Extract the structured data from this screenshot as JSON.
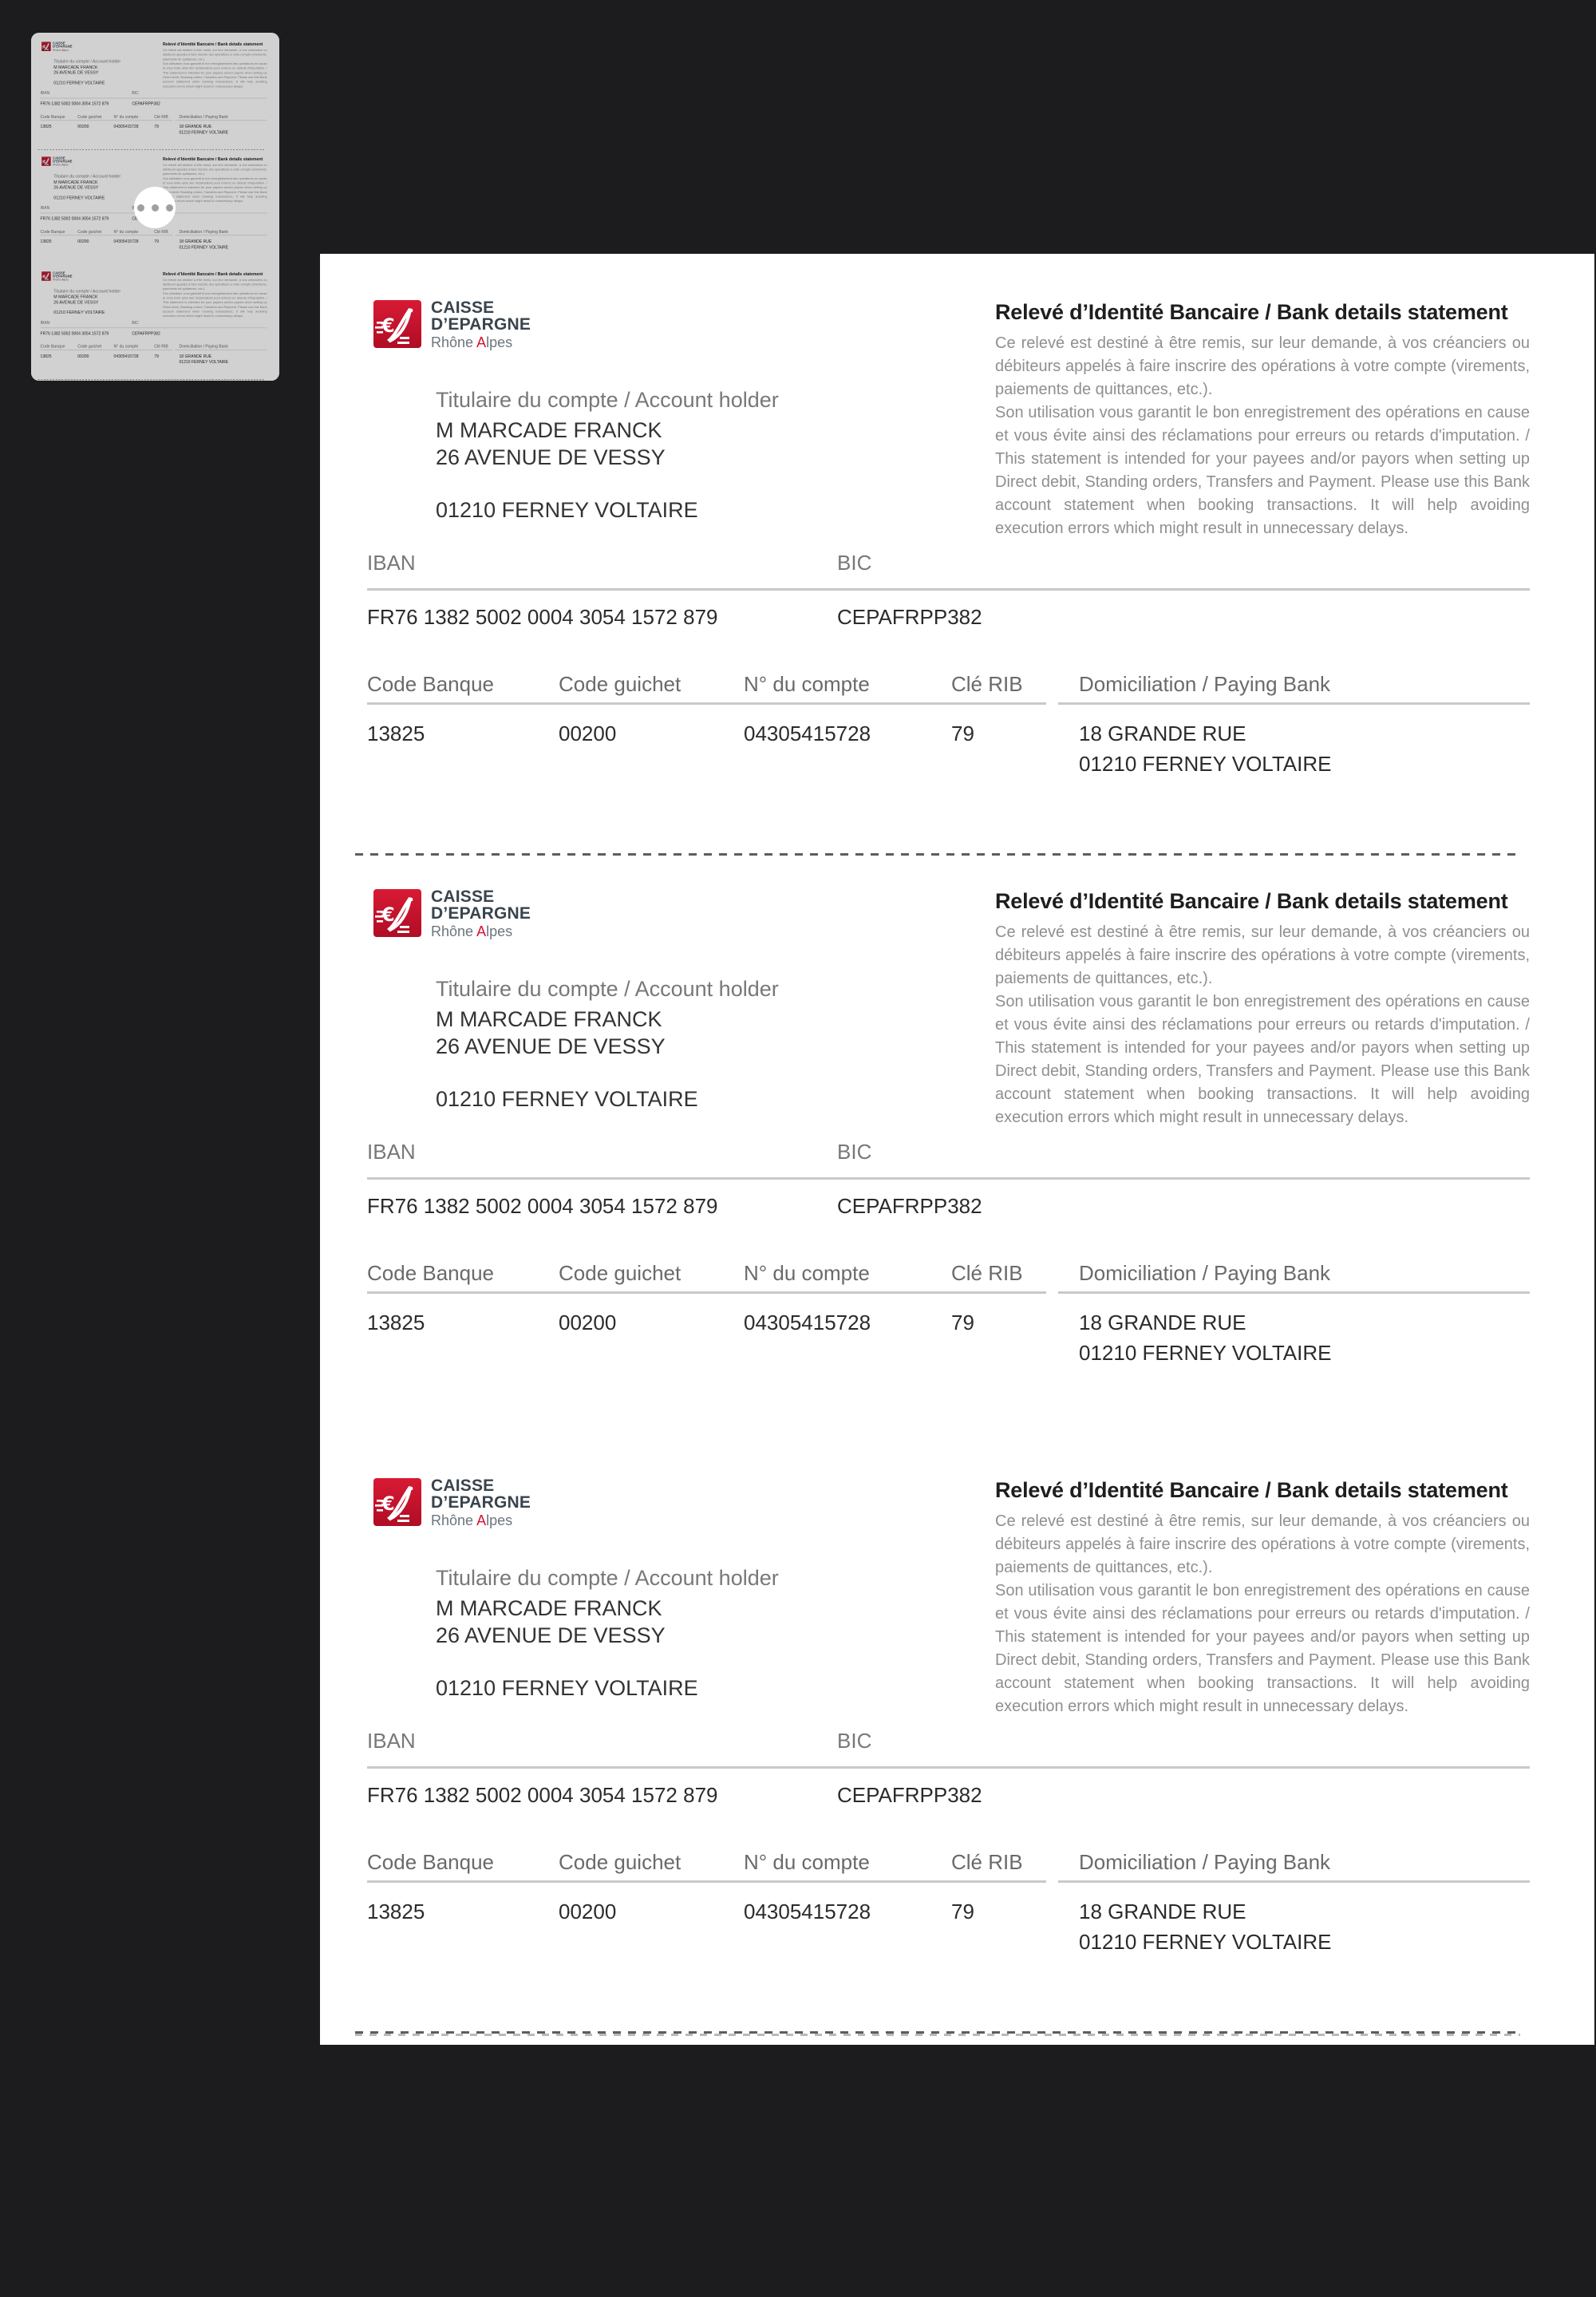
{
  "app": {
    "background_color": "#1c1c1e",
    "page_color": "#ffffff"
  },
  "brand": {
    "name_line1": "CAISSE",
    "name_line2": "D’EPARGNE",
    "region_prefix": "Rhône ",
    "region_accent": "A",
    "region_suffix": "lpes",
    "logo_color": "#c8102e",
    "logo_icon": "caisse-epargne-squirrel-euro"
  },
  "rib": {
    "title": "Relevé d’Identité Bancaire / Bank details statement",
    "intro_text": "Ce relevé est destiné à être remis, sur leur demande, à vos créanciers ou débiteurs appelés à faire inscrire des opérations à votre compte (virements, paiements de quittances, etc.).",
    "usage_text": "Son utilisation vous garantit le bon enregistrement des opérations en cause et vous évite ainsi des réclamations pour erreurs ou retards d'imputation. / This statement is intended for your payees and/or payors when setting up Direct debit, Standing orders, Transfers and Payment. Please use this Bank account statement when booking transactions. It will help avoiding execution errors which might result in unnecessary delays.",
    "account_holder_label": "Titulaire du compte / Account holder",
    "holder_name": "M MARCADE FRANCK",
    "holder_street": "26 AVENUE DE VESSY",
    "holder_city": "01210 FERNEY VOLTAIRE",
    "iban_label": "IBAN",
    "iban_value": "FR76 1382 5002 0004 3054 1572 879",
    "bic_label": "BIC",
    "bic_value": "CEPAFRPP382",
    "table": {
      "headers": [
        "Code Banque",
        "Code guichet",
        "N° du compte",
        "Clé RIB",
        "Domiciliation / Paying Bank"
      ],
      "bank_code": "13825",
      "branch_code": "00200",
      "account_number": "04305415728",
      "rib_key": "79",
      "domiciliation_line1": "18 GRANDE RUE",
      "domiciliation_line2": "01210 FERNEY VOLTAIRE"
    }
  }
}
